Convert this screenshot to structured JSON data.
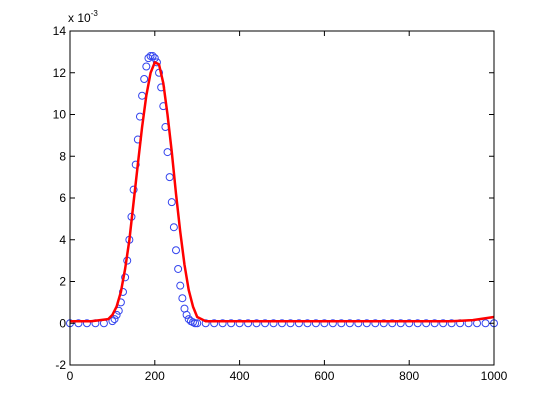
{
  "chart_data": {
    "type": "line",
    "title": "",
    "xlabel": "",
    "ylabel": "",
    "xlim": [
      0,
      1000
    ],
    "ylim": [
      -2,
      14
    ],
    "y_scale_exponent_label": "x 10",
    "y_scale_exponent": "-3",
    "x_ticks": [
      0,
      200,
      400,
      600,
      800,
      1000
    ],
    "y_ticks": [
      -2,
      0,
      2,
      4,
      6,
      8,
      10,
      12,
      14
    ],
    "grid": false,
    "legend": "none",
    "colors": {
      "markers": "#3344ee",
      "line": "#ff0000",
      "axes": "#000000"
    },
    "series": [
      {
        "style": "markers-circle",
        "color": "#3344ee",
        "x": [
          0,
          20,
          40,
          60,
          80,
          100,
          105,
          110,
          115,
          120,
          125,
          130,
          135,
          140,
          145,
          150,
          155,
          160,
          165,
          170,
          175,
          180,
          185,
          190,
          195,
          200,
          205,
          210,
          215,
          220,
          225,
          230,
          235,
          240,
          245,
          250,
          255,
          260,
          265,
          270,
          275,
          280,
          285,
          290,
          295,
          300,
          320,
          340,
          360,
          380,
          400,
          420,
          440,
          460,
          480,
          500,
          520,
          540,
          560,
          580,
          600,
          620,
          640,
          660,
          680,
          700,
          720,
          740,
          760,
          780,
          800,
          820,
          840,
          860,
          880,
          900,
          920,
          940,
          960,
          980,
          1000
        ],
        "y": [
          0,
          0,
          0,
          0,
          0,
          0.1,
          0.2,
          0.4,
          0.6,
          1.0,
          1.5,
          2.2,
          3.0,
          4.0,
          5.1,
          6.4,
          7.6,
          8.8,
          9.9,
          10.9,
          11.7,
          12.3,
          12.7,
          12.8,
          12.8,
          12.7,
          12.5,
          12.0,
          11.3,
          10.4,
          9.4,
          8.2,
          7.0,
          5.8,
          4.6,
          3.5,
          2.6,
          1.8,
          1.2,
          0.7,
          0.4,
          0.2,
          0.1,
          0.05,
          0,
          0,
          0,
          0,
          0,
          0,
          0,
          0,
          0,
          0,
          0,
          0,
          0,
          0,
          0,
          0,
          0,
          0,
          0,
          0,
          0,
          0,
          0,
          0,
          0,
          0,
          0,
          0,
          0,
          0,
          0,
          0,
          0,
          0,
          0,
          0,
          0
        ]
      },
      {
        "style": "line",
        "color": "#ff0000",
        "x": [
          0,
          50,
          90,
          100,
          110,
          120,
          130,
          140,
          150,
          160,
          170,
          180,
          190,
          200,
          210,
          220,
          230,
          240,
          250,
          260,
          270,
          280,
          290,
          300,
          320,
          400,
          500,
          600,
          700,
          800,
          900,
          950,
          1000
        ],
        "y": [
          0.1,
          0.1,
          0.2,
          0.4,
          0.8,
          1.5,
          2.6,
          4.0,
          5.8,
          7.6,
          9.4,
          10.9,
          12.0,
          12.5,
          12.4,
          11.5,
          10.0,
          8.2,
          6.2,
          4.4,
          2.8,
          1.6,
          0.8,
          0.3,
          0.1,
          0.1,
          0.1,
          0.1,
          0.1,
          0.1,
          0.1,
          0.15,
          0.3
        ]
      }
    ]
  }
}
